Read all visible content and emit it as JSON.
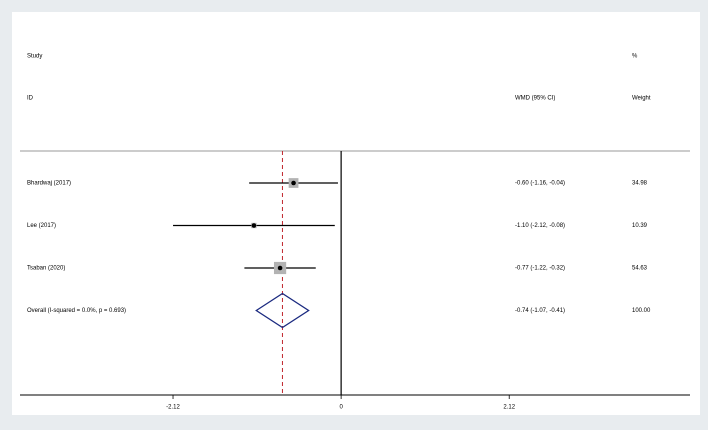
{
  "chart_data": {
    "type": "forest",
    "headers": {
      "study": "Study",
      "id": "ID",
      "effect": "WMD (95% CI)",
      "percent": "%",
      "weight": "Weight"
    },
    "studies": [
      "Bhardwaj (2017)",
      "Lee (2017)",
      "Tsaban (2020)"
    ],
    "values": [
      -0.6,
      -1.1,
      -0.77
    ],
    "lower": [
      -1.16,
      -2.12,
      -1.22
    ],
    "upper": [
      -0.04,
      -0.08,
      -0.32
    ],
    "value_labels": [
      "-0.60 (-1.16, -0.04)",
      "-1.10 (-2.12, -0.08)",
      "-0.77 (-1.22, -0.32)"
    ],
    "weights": [
      34.98,
      10.39,
      54.63
    ],
    "weight_labels": [
      "34.98",
      "10.39",
      "54.63"
    ],
    "overall": {
      "label": "Overall  (I-squared = 0.0%, p = 0.693)",
      "value": -0.74,
      "lower": -1.07,
      "upper": -0.41,
      "value_label": "-0.74 (-1.07, -0.41)",
      "weight": 100,
      "weight_label": "100.00"
    },
    "xlim": [
      -4.05,
      4.4
    ],
    "xticks": [
      -2.12,
      0,
      2.12
    ],
    "marker_color": "#b3b3b3",
    "diamond_color": "#1b2a80",
    "overall_line_color": "#c0262d"
  }
}
